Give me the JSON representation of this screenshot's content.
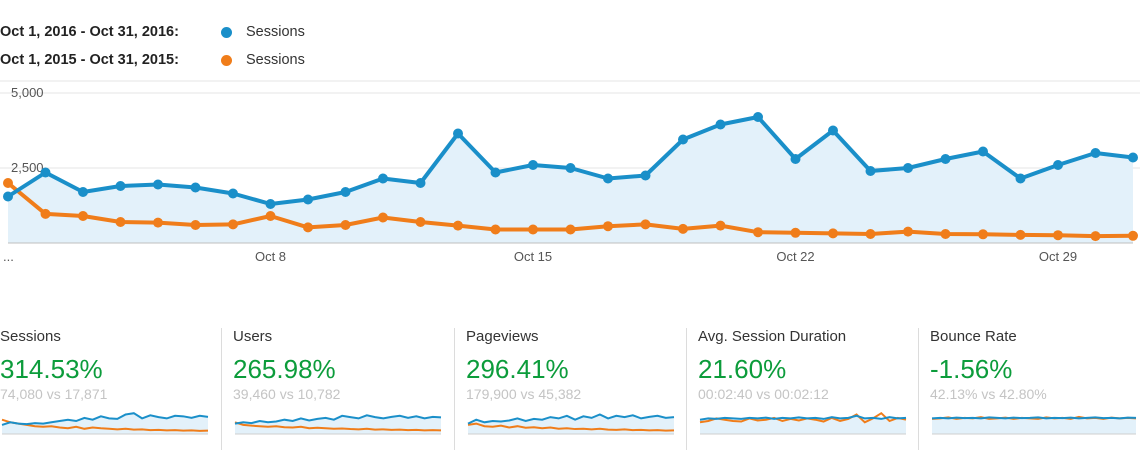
{
  "legend": [
    {
      "range": "Oct 1, 2016 - Oct 31, 2016:",
      "name": "Sessions",
      "color": "#1a8fc9"
    },
    {
      "range": "Oct 1, 2015 - Oct 31, 2015:",
      "name": "Sessions",
      "color": "#f07d1a"
    }
  ],
  "chart_data": {
    "type": "line",
    "x": [
      "Oct 1",
      "Oct 2",
      "Oct 3",
      "Oct 4",
      "Oct 5",
      "Oct 6",
      "Oct 7",
      "Oct 8",
      "Oct 9",
      "Oct 10",
      "Oct 11",
      "Oct 12",
      "Oct 13",
      "Oct 14",
      "Oct 15",
      "Oct 16",
      "Oct 17",
      "Oct 18",
      "Oct 19",
      "Oct 20",
      "Oct 21",
      "Oct 22",
      "Oct 23",
      "Oct 24",
      "Oct 25",
      "Oct 26",
      "Oct 27",
      "Oct 28",
      "Oct 29",
      "Oct 30",
      "Oct 31"
    ],
    "x_ticks": [
      "...",
      "Oct 8",
      "Oct 15",
      "Oct 22",
      "Oct 29"
    ],
    "x_tick_dates": [
      "Oct 1",
      "Oct 8",
      "Oct 15",
      "Oct 22",
      "Oct 29"
    ],
    "y_ticks": [
      "2,500",
      "5,000"
    ],
    "y_tick_values": [
      2500,
      5000
    ],
    "ylim": [
      0,
      5000
    ],
    "grid": true,
    "series": [
      {
        "name": "Sessions",
        "color": "#1a8fc9",
        "fill": "#e3f1fa",
        "values": [
          1550,
          2350,
          1700,
          1900,
          1950,
          1850,
          1650,
          1300,
          1450,
          1700,
          2150,
          2000,
          3650,
          2350,
          2600,
          2500,
          2150,
          2250,
          3450,
          3950,
          4200,
          2800,
          3750,
          2400,
          2500,
          2800,
          3050,
          2150,
          2600,
          3000,
          2850
        ]
      },
      {
        "name": "Sessions",
        "color": "#f07d1a",
        "values": [
          2000,
          970,
          900,
          700,
          680,
          600,
          620,
          900,
          520,
          600,
          850,
          700,
          580,
          450,
          450,
          450,
          560,
          620,
          470,
          580,
          360,
          340,
          320,
          300,
          380,
          300,
          290,
          270,
          260,
          230,
          240
        ]
      }
    ]
  },
  "metrics": [
    {
      "label": "Sessions",
      "pct": "314.53%",
      "cmp": "74,080 vs 17,871",
      "spark_a": [
        0.35,
        0.45,
        0.4,
        0.38,
        0.42,
        0.4,
        0.45,
        0.5,
        0.55,
        0.5,
        0.62,
        0.55,
        0.68,
        0.6,
        0.58,
        0.75,
        0.8,
        0.6,
        0.72,
        0.65,
        0.6,
        0.7,
        0.68,
        0.62,
        0.7,
        0.66
      ],
      "spark_b": [
        0.55,
        0.45,
        0.4,
        0.35,
        0.3,
        0.28,
        0.3,
        0.25,
        0.22,
        0.28,
        0.2,
        0.25,
        0.22,
        0.2,
        0.18,
        0.2,
        0.17,
        0.18,
        0.15,
        0.16,
        0.14,
        0.15,
        0.13,
        0.14,
        0.12,
        0.13
      ]
    },
    {
      "label": "Users",
      "pct": "265.98%",
      "cmp": "39,460 vs 10,782",
      "spark_a": [
        0.4,
        0.45,
        0.42,
        0.5,
        0.45,
        0.48,
        0.55,
        0.5,
        0.6,
        0.52,
        0.58,
        0.62,
        0.55,
        0.7,
        0.65,
        0.6,
        0.72,
        0.65,
        0.6,
        0.66,
        0.7,
        0.62,
        0.68,
        0.6,
        0.66,
        0.64
      ],
      "spark_b": [
        0.45,
        0.35,
        0.32,
        0.3,
        0.28,
        0.3,
        0.26,
        0.25,
        0.28,
        0.22,
        0.24,
        0.22,
        0.2,
        0.21,
        0.19,
        0.18,
        0.2,
        0.17,
        0.18,
        0.16,
        0.17,
        0.15,
        0.16,
        0.14,
        0.15,
        0.14
      ]
    },
    {
      "label": "Pageviews",
      "pct": "296.41%",
      "cmp": "179,900 vs 45,382",
      "spark_a": [
        0.4,
        0.55,
        0.45,
        0.5,
        0.48,
        0.52,
        0.6,
        0.5,
        0.58,
        0.55,
        0.65,
        0.6,
        0.7,
        0.55,
        0.68,
        0.62,
        0.75,
        0.6,
        0.7,
        0.65,
        0.72,
        0.6,
        0.66,
        0.7,
        0.62,
        0.65
      ],
      "spark_b": [
        0.35,
        0.4,
        0.3,
        0.28,
        0.32,
        0.25,
        0.3,
        0.24,
        0.26,
        0.22,
        0.25,
        0.2,
        0.22,
        0.19,
        0.2,
        0.18,
        0.2,
        0.17,
        0.16,
        0.18,
        0.15,
        0.16,
        0.14,
        0.15,
        0.13,
        0.14
      ]
    },
    {
      "label": "Avg. Session Duration",
      "pct": "21.60%",
      "cmp": "00:02:40 vs 00:02:12",
      "spark_a": [
        0.55,
        0.6,
        0.58,
        0.62,
        0.6,
        0.58,
        0.62,
        0.6,
        0.63,
        0.58,
        0.62,
        0.6,
        0.64,
        0.6,
        0.62,
        0.58,
        0.65,
        0.6,
        0.62,
        0.7,
        0.6,
        0.62,
        0.58,
        0.65,
        0.6,
        0.62
      ],
      "spark_b": [
        0.45,
        0.5,
        0.6,
        0.55,
        0.5,
        0.48,
        0.6,
        0.52,
        0.55,
        0.62,
        0.5,
        0.58,
        0.52,
        0.6,
        0.55,
        0.48,
        0.62,
        0.5,
        0.58,
        0.75,
        0.45,
        0.6,
        0.8,
        0.5,
        0.62,
        0.55
      ]
    },
    {
      "label": "Bounce Rate",
      "pct": "-1.56%",
      "cmp": "42.13% vs 42.80%",
      "spark_a": [
        0.6,
        0.62,
        0.6,
        0.63,
        0.61,
        0.62,
        0.6,
        0.64,
        0.62,
        0.6,
        0.63,
        0.61,
        0.62,
        0.64,
        0.6,
        0.62,
        0.61,
        0.63,
        0.6,
        0.62,
        0.64,
        0.61,
        0.62,
        0.6,
        0.63,
        0.62
      ],
      "spark_b": [
        0.58,
        0.6,
        0.64,
        0.58,
        0.62,
        0.6,
        0.65,
        0.58,
        0.6,
        0.63,
        0.58,
        0.62,
        0.6,
        0.58,
        0.64,
        0.6,
        0.62,
        0.58,
        0.66,
        0.6,
        0.62,
        0.58,
        0.63,
        0.6,
        0.62,
        0.6
      ]
    }
  ]
}
